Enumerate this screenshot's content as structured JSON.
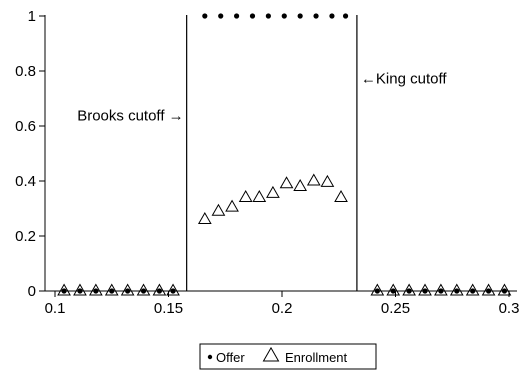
{
  "chart_data": {
    "type": "scatter",
    "xlim": [
      0.1,
      0.3
    ],
    "ylim": [
      0,
      1
    ],
    "x_ticks": [
      0.1,
      0.15,
      0.2,
      0.25,
      0.3
    ],
    "x_tick_labels": [
      "0.1",
      "0.15",
      "0.2",
      "0.25",
      "0.3"
    ],
    "y_ticks": [
      0,
      0.2,
      0.4,
      0.6,
      0.8,
      1
    ],
    "y_tick_labels": [
      "0",
      "0.2",
      "0.4",
      "0.6",
      "0.8",
      "1"
    ],
    "grid": false,
    "legend_position": "bottom",
    "series": [
      {
        "name": "Offer",
        "marker": "dot",
        "points": [
          [
            0.104,
            0
          ],
          [
            0.111,
            0
          ],
          [
            0.118,
            0
          ],
          [
            0.125,
            0
          ],
          [
            0.132,
            0
          ],
          [
            0.139,
            0
          ],
          [
            0.146,
            0
          ],
          [
            0.152,
            0
          ],
          [
            0.166,
            1
          ],
          [
            0.173,
            1
          ],
          [
            0.18,
            1
          ],
          [
            0.187,
            1
          ],
          [
            0.194,
            1
          ],
          [
            0.201,
            1
          ],
          [
            0.208,
            1
          ],
          [
            0.215,
            1
          ],
          [
            0.222,
            1
          ],
          [
            0.228,
            1
          ],
          [
            0.242,
            0
          ],
          [
            0.249,
            0
          ],
          [
            0.256,
            0
          ],
          [
            0.263,
            0
          ],
          [
            0.27,
            0
          ],
          [
            0.277,
            0
          ],
          [
            0.284,
            0
          ],
          [
            0.291,
            0
          ],
          [
            0.298,
            0
          ]
        ]
      },
      {
        "name": "Enrollment",
        "marker": "triangle",
        "points": [
          [
            0.104,
            0
          ],
          [
            0.111,
            0
          ],
          [
            0.118,
            0
          ],
          [
            0.125,
            0
          ],
          [
            0.132,
            0
          ],
          [
            0.139,
            0
          ],
          [
            0.146,
            0
          ],
          [
            0.152,
            0
          ],
          [
            0.166,
            0.26
          ],
          [
            0.172,
            0.29
          ],
          [
            0.178,
            0.305
          ],
          [
            0.184,
            0.34
          ],
          [
            0.19,
            0.34
          ],
          [
            0.196,
            0.355
          ],
          [
            0.202,
            0.39
          ],
          [
            0.208,
            0.38
          ],
          [
            0.214,
            0.4
          ],
          [
            0.22,
            0.395
          ],
          [
            0.226,
            0.34
          ],
          [
            0.242,
            0
          ],
          [
            0.249,
            0
          ],
          [
            0.256,
            0
          ],
          [
            0.263,
            0
          ],
          [
            0.27,
            0
          ],
          [
            0.277,
            0
          ],
          [
            0.284,
            0
          ],
          [
            0.291,
            0
          ],
          [
            0.298,
            0
          ]
        ]
      }
    ],
    "cutoffs": [
      {
        "x": 0.158,
        "label": "Brooks cutoff →"
      },
      {
        "x": 0.233,
        "label": "←King cutoff"
      }
    ],
    "legend": [
      "Offer",
      "Enrollment"
    ]
  }
}
